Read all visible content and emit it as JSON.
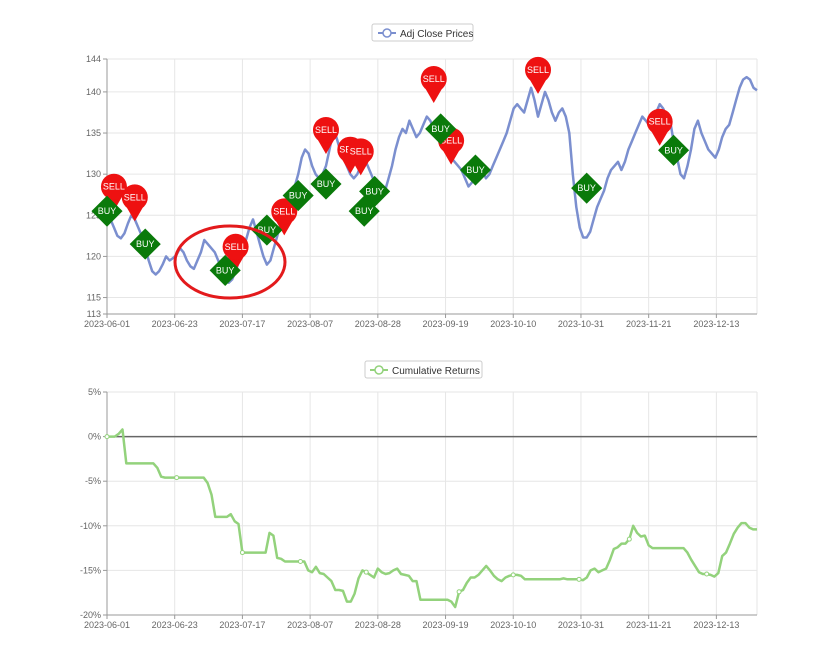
{
  "chart_data": [
    {
      "type": "line",
      "legend": "Adj Close Prices",
      "legend_position": "top-center",
      "grid": true,
      "line_color": "#7b8fcf",
      "x_ticks": [
        "2023-06-01",
        "2023-06-23",
        "2023-07-17",
        "2023-08-07",
        "2023-08-28",
        "2023-09-19",
        "2023-10-10",
        "2023-10-31",
        "2023-11-21",
        "2023-12-13"
      ],
      "y_ticks": [
        "113",
        "115",
        "120",
        "125",
        "130",
        "135",
        "140",
        "144"
      ],
      "ylim": [
        113,
        144
      ],
      "series": [
        {
          "name": "Adj Close Prices",
          "values": [
            125.5,
            124.5,
            123.5,
            122.5,
            122.2,
            122.8,
            124,
            125,
            124.5,
            123.5,
            122.5,
            121,
            119.5,
            118.2,
            117.8,
            118.2,
            119,
            120,
            119.5,
            119.8,
            120.2,
            121,
            120.5,
            119.5,
            118.8,
            118.5,
            119.5,
            120.5,
            122,
            121.5,
            121,
            120.5,
            119.5,
            118.5,
            117.5,
            116.8,
            117.2,
            118.2,
            119.5,
            120.8,
            122,
            123.5,
            124.5,
            123,
            121.5,
            120,
            119,
            119.5,
            121,
            122.5,
            124,
            125.5,
            127,
            128,
            128.5,
            130,
            132,
            133,
            132.5,
            131,
            130,
            129.5,
            130,
            131,
            133,
            135,
            134.5,
            133,
            132,
            131,
            130,
            129.5,
            130,
            131,
            132,
            131,
            130,
            129,
            128,
            127.5,
            128,
            129.5,
            131,
            133,
            134.5,
            135.5,
            135,
            136.5,
            135.5,
            134.5,
            135,
            136,
            137,
            136.5,
            135.5,
            135,
            134.5,
            134,
            133,
            132,
            131.5,
            131,
            130.5,
            129.5,
            128.5,
            129,
            130,
            131,
            130.5,
            129.5,
            130,
            131,
            132,
            133,
            134,
            135,
            136.5,
            138,
            138.5,
            138,
            137.5,
            139,
            140.5,
            139,
            137,
            138.5,
            140,
            139,
            137.5,
            136.5,
            137.5,
            138,
            137,
            135,
            130,
            126,
            123.5,
            122.3,
            122.3,
            123,
            124.5,
            126,
            127,
            128,
            129.5,
            130.5,
            131,
            131.5,
            130.5,
            131.5,
            133,
            134,
            135,
            136,
            137,
            136.5,
            136,
            137,
            137.5,
            138.5,
            138,
            137,
            136.5,
            134,
            132,
            130,
            129.5,
            131,
            133,
            135.5,
            136.5,
            135,
            134,
            133,
            132.5,
            132,
            133,
            134.5,
            135.5,
            136,
            137.5,
            139,
            140.5,
            141.5,
            141.8,
            141.5,
            140.5,
            140.2
          ],
          "signals": [
            {
              "label": "BUY",
              "index": 0,
              "value": 125.5
            },
            {
              "label": "SELL",
              "index": 2,
              "value": 125.8
            },
            {
              "label": "SELL",
              "index": 8,
              "value": 124.5
            },
            {
              "label": "BUY",
              "index": 11,
              "value": 121.5
            },
            {
              "label": "BUY",
              "index": 34,
              "value": 118.3
            },
            {
              "label": "SELL",
              "index": 37,
              "value": 118.5
            },
            {
              "label": "BUY",
              "index": 46,
              "value": 123.2
            },
            {
              "label": "SELL",
              "index": 51,
              "value": 122.8
            },
            {
              "label": "BUY",
              "index": 55,
              "value": 127.4
            },
            {
              "label": "SELL",
              "index": 63,
              "value": 132.7
            },
            {
              "label": "BUY",
              "index": 63,
              "value": 128.8
            },
            {
              "label": "SELL",
              "index": 70,
              "value": 130.3
            },
            {
              "label": "SELL",
              "index": 73,
              "value": 130.1
            },
            {
              "label": "BUY",
              "index": 74,
              "value": 125.5
            },
            {
              "label": "BUY",
              "index": 77,
              "value": 127.9
            },
            {
              "label": "SELL",
              "index": 94,
              "value": 138.9
            },
            {
              "label": "BUY",
              "index": 96,
              "value": 135.5
            },
            {
              "label": "SELL",
              "index": 99,
              "value": 131.4
            },
            {
              "label": "BUY",
              "index": 106,
              "value": 130.5
            },
            {
              "label": "SELL",
              "index": 124,
              "value": 140
            },
            {
              "label": "BUY",
              "index": 138,
              "value": 128.3
            },
            {
              "label": "SELL",
              "index": 159,
              "value": 133.7
            },
            {
              "label": "BUY",
              "index": 163,
              "value": 132.9
            }
          ]
        }
      ]
    },
    {
      "type": "line",
      "legend": "Cumulative Returns",
      "legend_position": "top-center",
      "grid": true,
      "line_color": "#93d27c",
      "x_ticks": [
        "2023-06-01",
        "2023-06-23",
        "2023-07-17",
        "2023-08-07",
        "2023-08-28",
        "2023-09-19",
        "2023-10-10",
        "2023-10-31",
        "2023-11-21",
        "2023-12-13"
      ],
      "y_ticks": [
        "5%",
        "0%",
        "-5%",
        "-10%",
        "-15%",
        "-20%"
      ],
      "ylim": [
        -20,
        5
      ],
      "series": [
        {
          "name": "Cumulative Returns",
          "values": [
            0,
            0,
            0,
            0.3,
            0.8,
            -3,
            -3,
            -3,
            -3,
            -3,
            -3,
            -3,
            -3,
            -3.5,
            -4.5,
            -4.6,
            -4.6,
            -4.6,
            -4.6,
            -4.6,
            -4.6,
            -4.6,
            -4.6,
            -4.6,
            -4.6,
            -4.6,
            -5.2,
            -6.5,
            -9,
            -9,
            -9,
            -9,
            -8.7,
            -9.5,
            -9.8,
            -13,
            -13,
            -13,
            -13,
            -13,
            -13,
            -13,
            -10.8,
            -11.1,
            -13.6,
            -13.7,
            -14,
            -14,
            -14,
            -14,
            -14,
            -14,
            -15,
            -15.2,
            -14.6,
            -15.3,
            -15.4,
            -15.8,
            -16.2,
            -17.2,
            -17.2,
            -17.3,
            -18.5,
            -18.5,
            -17.6,
            -15.9,
            -15,
            -15.2,
            -15.5,
            -15.8,
            -14.8,
            -15.2,
            -15.4,
            -15.3,
            -15,
            -14.8,
            -15.4,
            -15.5,
            -15.6,
            -16.2,
            -16.2,
            -18.3,
            -18.3,
            -18.3,
            -18.3,
            -18.3,
            -18.3,
            -18.3,
            -18.3,
            -18.5,
            -19.1,
            -17.4,
            -17.2,
            -16.4,
            -15.8,
            -15.8,
            -15.5,
            -15,
            -14.5,
            -15,
            -15.6,
            -16,
            -16.2,
            -15.8,
            -15.6,
            -15.5,
            -15.5,
            -15.6,
            -16,
            -16,
            -16,
            -16,
            -16,
            -16,
            -16,
            -16,
            -16,
            -16,
            -15.9,
            -16,
            -16,
            -16,
            -16,
            -16.1,
            -15.8,
            -15,
            -14.8,
            -15.2,
            -15,
            -14.8,
            -13.8,
            -12.6,
            -12.4,
            -12,
            -12,
            -11.5,
            -10,
            -10.8,
            -11.2,
            -11.1,
            -12.2,
            -12.5,
            -12.5,
            -12.5,
            -12.5,
            -12.5,
            -12.5,
            -12.5,
            -12.5,
            -12.5,
            -13,
            -13.8,
            -14.5,
            -15.2,
            -15.4,
            -15.4,
            -15.5,
            -15.7,
            -15.3,
            -13.4,
            -13,
            -12,
            -10.9,
            -10.2,
            -9.7,
            -9.7,
            -10.2,
            -10.4,
            -10.4
          ]
        }
      ]
    }
  ]
}
